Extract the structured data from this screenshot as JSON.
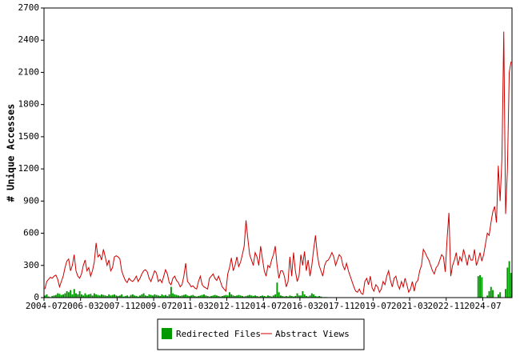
{
  "chart_data": {
    "type": "bar-line",
    "y_label": "# Unique Accesses",
    "categories": [
      "2004-07",
      null,
      null,
      null,
      null,
      null,
      null,
      null,
      null,
      null,
      null,
      null,
      null,
      null,
      null,
      null,
      null,
      null,
      null,
      null,
      "2006-03",
      null,
      null,
      null,
      null,
      null,
      null,
      null,
      null,
      null,
      null,
      null,
      null,
      null,
      null,
      null,
      null,
      null,
      null,
      null,
      "2007-11",
      null,
      null,
      null,
      null,
      null,
      null,
      null,
      null,
      null,
      null,
      null,
      null,
      null,
      null,
      null,
      null,
      null,
      null,
      null,
      "2009-07",
      null,
      null,
      null,
      null,
      null,
      null,
      null,
      null,
      null,
      null,
      null,
      null,
      null,
      null,
      null,
      null,
      null,
      null,
      null,
      "2011-03",
      null,
      null,
      null,
      null,
      null,
      null,
      null,
      null,
      null,
      null,
      null,
      null,
      null,
      null,
      null,
      null,
      null,
      null,
      null,
      "2012-11",
      null,
      null,
      null,
      null,
      null,
      null,
      null,
      null,
      null,
      null,
      null,
      null,
      null,
      null,
      null,
      null,
      null,
      null,
      null,
      "2014-07",
      null,
      null,
      null,
      null,
      null,
      null,
      null,
      null,
      null,
      null,
      null,
      null,
      null,
      null,
      null,
      null,
      null,
      null,
      null,
      "2016-03",
      null,
      null,
      null,
      null,
      null,
      null,
      null,
      null,
      null,
      null,
      null,
      null,
      null,
      null,
      null,
      null,
      null,
      null,
      null,
      "2017-11",
      null,
      null,
      null,
      null,
      null,
      null,
      null,
      null,
      null,
      null,
      null,
      null,
      null,
      null,
      null,
      null,
      null,
      null,
      null,
      "2019-07",
      null,
      null,
      null,
      null,
      null,
      null,
      null,
      null,
      null,
      null,
      null,
      null,
      null,
      null,
      null,
      null,
      null,
      null,
      null,
      "2021-03",
      null,
      null,
      null,
      null,
      null,
      null,
      null,
      null,
      null,
      null,
      null,
      null,
      null,
      null,
      null,
      null,
      null,
      null,
      null,
      "2022-11",
      null,
      null,
      null,
      null,
      null,
      null,
      null,
      null,
      null,
      null,
      null,
      null,
      null,
      null,
      null,
      null,
      null,
      null,
      null,
      "2024-07",
      null,
      null,
      null,
      null,
      null,
      null,
      null,
      null,
      null,
      null,
      null,
      null,
      null,
      null,
      null
    ],
    "series": [
      {
        "name": "Redirected Files",
        "kind": "bar",
        "color": "#009900",
        "values": [
          20,
          30,
          10,
          5,
          15,
          20,
          25,
          40,
          35,
          25,
          30,
          40,
          60,
          50,
          70,
          30,
          80,
          40,
          30,
          60,
          30,
          20,
          40,
          25,
          30,
          35,
          20,
          40,
          30,
          25,
          20,
          30,
          25,
          20,
          15,
          30,
          20,
          25,
          30,
          20,
          15,
          20,
          30,
          10,
          15,
          20,
          10,
          25,
          30,
          20,
          15,
          10,
          20,
          30,
          40,
          20,
          15,
          30,
          25,
          20,
          30,
          25,
          20,
          15,
          30,
          20,
          25,
          15,
          30,
          100,
          40,
          30,
          25,
          20,
          15,
          20,
          25,
          30,
          20,
          15,
          20,
          25,
          15,
          10,
          15,
          20,
          25,
          30,
          20,
          15,
          10,
          15,
          20,
          25,
          20,
          15,
          10,
          15,
          20,
          25,
          20,
          50,
          30,
          20,
          15,
          20,
          25,
          20,
          15,
          10,
          15,
          20,
          25,
          20,
          15,
          20,
          15,
          10,
          15,
          20,
          15,
          10,
          20,
          15,
          10,
          20,
          30,
          140,
          50,
          20,
          15,
          10,
          15,
          10,
          20,
          15,
          10,
          15,
          40,
          20,
          20,
          60,
          30,
          15,
          10,
          20,
          40,
          30,
          15,
          10,
          15,
          10,
          5,
          5,
          5,
          0,
          0,
          0,
          0,
          0,
          0,
          0,
          0,
          0,
          0,
          0,
          0,
          0,
          0,
          0,
          0,
          0,
          0,
          0,
          0,
          0,
          0,
          0,
          0,
          0,
          0,
          0,
          0,
          0,
          0,
          0,
          0,
          0,
          0,
          0,
          0,
          0,
          0,
          0,
          0,
          0,
          0,
          0,
          0,
          0,
          0,
          0,
          0,
          0,
          0,
          0,
          0,
          0,
          0,
          0,
          0,
          0,
          0,
          0,
          0,
          0,
          0,
          0,
          0,
          0,
          0,
          0,
          0,
          0,
          0,
          0,
          0,
          0,
          0,
          0,
          0,
          0,
          0,
          0,
          0,
          0,
          0,
          200,
          210,
          190,
          0,
          0,
          20,
          60,
          100,
          70,
          0,
          0,
          30,
          50,
          0,
          0,
          80,
          280,
          340,
          230
        ]
      },
      {
        "name": "Abstract Views",
        "kind": "line",
        "color": "#cc0000",
        "values": [
          80,
          150,
          170,
          190,
          180,
          200,
          210,
          170,
          100,
          150,
          200,
          280,
          340,
          360,
          250,
          300,
          400,
          250,
          200,
          180,
          220,
          300,
          350,
          250,
          280,
          200,
          250,
          330,
          510,
          380,
          400,
          350,
          450,
          380,
          300,
          350,
          250,
          280,
          380,
          390,
          380,
          360,
          250,
          200,
          160,
          140,
          180,
          160,
          150,
          170,
          200,
          150,
          180,
          220,
          250,
          260,
          240,
          180,
          150,
          200,
          250,
          230,
          150,
          170,
          140,
          200,
          260,
          220,
          140,
          120,
          180,
          200,
          160,
          140,
          100,
          120,
          200,
          320,
          150,
          130,
          100,
          110,
          90,
          80,
          150,
          200,
          120,
          100,
          90,
          80,
          180,
          200,
          220,
          180,
          160,
          200,
          150,
          100,
          80,
          60,
          220,
          280,
          370,
          250,
          300,
          380,
          290,
          330,
          400,
          480,
          720,
          550,
          400,
          350,
          300,
          420,
          380,
          300,
          480,
          360,
          250,
          200,
          300,
          280,
          350,
          400,
          480,
          300,
          180,
          250,
          250,
          200,
          100,
          150,
          380,
          200,
          420,
          250,
          150,
          200,
          400,
          300,
          430,
          250,
          350,
          200,
          300,
          450,
          580,
          400,
          300,
          250,
          200,
          300,
          340,
          350,
          380,
          420,
          380,
          300,
          350,
          400,
          380,
          300,
          260,
          320,
          250,
          200,
          150,
          100,
          60,
          50,
          80,
          40,
          30,
          150,
          180,
          120,
          200,
          90,
          60,
          120,
          100,
          50,
          80,
          150,
          120,
          200,
          250,
          160,
          100,
          180,
          200,
          120,
          80,
          150,
          100,
          180,
          120,
          50,
          80,
          150,
          60,
          140,
          160,
          250,
          300,
          450,
          420,
          380,
          350,
          300,
          250,
          220,
          280,
          300,
          350,
          400,
          380,
          240,
          550,
          790,
          200,
          300,
          350,
          420,
          300,
          380,
          340,
          450,
          380,
          300,
          400,
          350,
          350,
          450,
          300,
          350,
          420,
          340,
          400,
          500,
          600,
          580,
          700,
          800,
          850,
          700,
          1230,
          900,
          1300,
          2480,
          780,
          1200,
          2100,
          2200
        ]
      }
    ],
    "ylim": [
      0,
      2700
    ],
    "yticks": [
      0,
      300,
      600,
      900,
      1200,
      1500,
      1800,
      2100,
      2400,
      2700
    ]
  }
}
